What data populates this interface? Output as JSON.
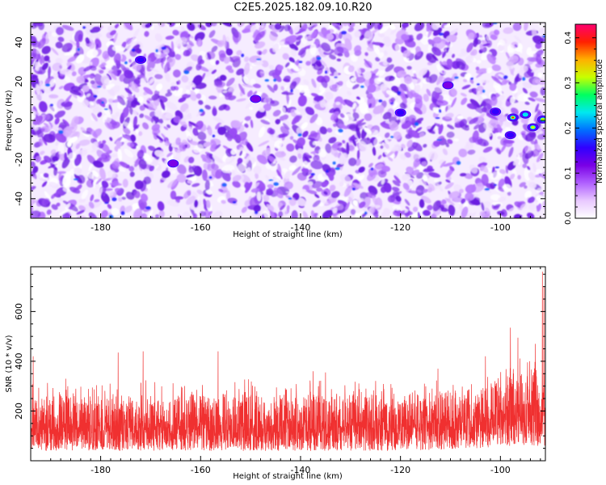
{
  "title": "C2E5.2025.182.09.10.R20",
  "chart_data": [
    {
      "type": "heatmap",
      "id": "spectrogram",
      "xlabel": "Height of straight line (km)",
      "ylabel": "Frequency (Hz)",
      "xlim": [
        -194,
        -91
      ],
      "ylim": [
        -50,
        50
      ],
      "xticks": [
        -180,
        -160,
        -140,
        -120,
        -100
      ],
      "xtick_labels": [
        "-180",
        "-160",
        "-140",
        "-120",
        "-100"
      ],
      "yticks": [
        -40,
        -20,
        0,
        20,
        40
      ],
      "ytick_labels": [
        "-40",
        "-20",
        "0",
        "20",
        "40"
      ],
      "colorbar": {
        "label": "Normalized spectral amplitude",
        "range": [
          0,
          0.43
        ],
        "ticks": [
          0,
          0.1,
          0.2,
          0.3,
          0.4
        ],
        "tick_labels": [
          "0.0",
          "0.1",
          "0.2",
          "0.3",
          "0.4"
        ],
        "colors": [
          "#ffffff",
          "#e8c8ff",
          "#b060ff",
          "#7a00e6",
          "#3000ff",
          "#0070ff",
          "#00e8f0",
          "#00ff60",
          "#c8ff00",
          "#ffb000",
          "#ff2000",
          "#ff0070"
        ]
      },
      "background_level": 0.04,
      "hotspots": [
        {
          "x": -97.5,
          "y": 1.5,
          "amplitude": 0.42
        },
        {
          "x": -93.5,
          "y": -3.5,
          "amplitude": 0.36
        },
        {
          "x": -91.5,
          "y": 0.5,
          "amplitude": 0.3
        },
        {
          "x": -101,
          "y": 4.5,
          "amplitude": 0.2
        },
        {
          "x": -98,
          "y": -7.5,
          "amplitude": 0.18
        },
        {
          "x": -95,
          "y": 3,
          "amplitude": 0.25
        },
        {
          "x": -120,
          "y": 4,
          "amplitude": 0.15
        },
        {
          "x": -172,
          "y": 31,
          "amplitude": 0.15
        },
        {
          "x": -165.5,
          "y": -22,
          "amplitude": 0.12
        },
        {
          "x": -149,
          "y": 11,
          "amplitude": 0.1
        },
        {
          "x": -110.5,
          "y": 18,
          "amplitude": 0.12
        }
      ]
    },
    {
      "type": "line",
      "id": "snr",
      "xlabel": "Height of straight line (km)",
      "ylabel": "SNR (10 * v/v)",
      "xlim": [
        -194,
        -91
      ],
      "ylim": [
        0,
        780
      ],
      "xticks": [
        -180,
        -160,
        -140,
        -120,
        -100
      ],
      "xtick_labels": [
        "-180",
        "-160",
        "-140",
        "-120",
        "-100"
      ],
      "yticks": [
        200,
        400,
        600
      ],
      "ytick_labels": [
        "200",
        "400",
        "600"
      ],
      "color": "#f03030",
      "envelope_x": [
        -194,
        -180,
        -160,
        -140,
        -120,
        -110,
        -105,
        -100,
        -97,
        -95,
        -93,
        -91
      ],
      "envelope_min": [
        40,
        40,
        40,
        40,
        40,
        45,
        50,
        55,
        60,
        60,
        60,
        60
      ],
      "envelope_typical_max": [
        260,
        260,
        270,
        265,
        270,
        280,
        290,
        320,
        360,
        380,
        400,
        420
      ],
      "peaks": [
        {
          "x": -193.5,
          "y": 420
        },
        {
          "x": -187,
          "y": 330
        },
        {
          "x": -176.5,
          "y": 435
        },
        {
          "x": -171.5,
          "y": 440
        },
        {
          "x": -156.5,
          "y": 440
        },
        {
          "x": -137.5,
          "y": 360
        },
        {
          "x": -135,
          "y": 355
        },
        {
          "x": -112.5,
          "y": 370
        },
        {
          "x": -103,
          "y": 420
        },
        {
          "x": -98,
          "y": 535
        },
        {
          "x": -96.5,
          "y": 495
        },
        {
          "x": -93,
          "y": 470
        },
        {
          "x": -91.6,
          "y": 760
        },
        {
          "x": -91.3,
          "y": 700
        }
      ]
    }
  ]
}
